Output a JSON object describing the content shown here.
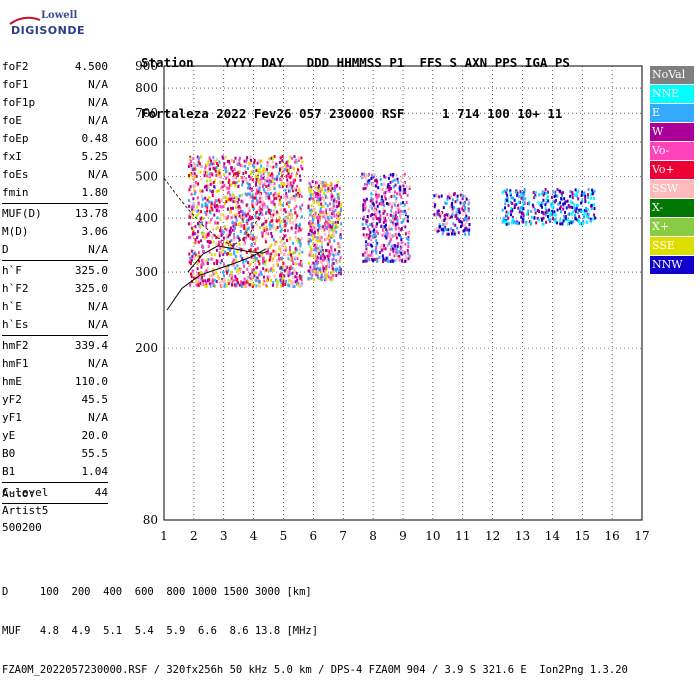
{
  "logo": {
    "word1": "Lowell",
    "word2": "DIGISONDE"
  },
  "header": {
    "line1": "Station    YYYY DAY   DDD HHMMSS P1  FFS S AXN PPS IGA PS",
    "line2": "Fortaleza 2022 Fev26 057 230000 RSF     1 714 100 10+ 11"
  },
  "params": [
    [
      {
        "k": "foF2",
        "v": "4.500"
      },
      {
        "k": "foF1",
        "v": "N/A"
      },
      {
        "k": "foF1p",
        "v": "N/A"
      },
      {
        "k": "foE",
        "v": "N/A"
      },
      {
        "k": "foEp",
        "v": "0.48"
      },
      {
        "k": "fxI",
        "v": "5.25"
      },
      {
        "k": "foEs",
        "v": "N/A"
      },
      {
        "k": "fmin",
        "v": "1.80"
      }
    ],
    [
      {
        "k": "MUF(D)",
        "v": "13.78"
      },
      {
        "k": "M(D)",
        "v": "3.06"
      },
      {
        "k": "D",
        "v": "N/A"
      }
    ],
    [
      {
        "k": "h`F",
        "v": "325.0"
      },
      {
        "k": "h`F2",
        "v": "325.0"
      },
      {
        "k": "h`E",
        "v": "N/A"
      },
      {
        "k": "h`Es",
        "v": "N/A"
      }
    ],
    [
      {
        "k": "hmF2",
        "v": "339.4"
      },
      {
        "k": "hmF1",
        "v": "N/A"
      },
      {
        "k": "hmE",
        "v": "110.0"
      },
      {
        "k": "yF2",
        "v": "45.5"
      },
      {
        "k": "yF1",
        "v": "N/A"
      },
      {
        "k": "yE",
        "v": "20.0"
      },
      {
        "k": "B0",
        "v": "55.5"
      },
      {
        "k": "B1",
        "v": "1.04"
      }
    ],
    [
      {
        "k": "C-level",
        "v": "44"
      }
    ]
  ],
  "auto": {
    "line1": "Auto:",
    "line2": "Artist5",
    "line3": "500200"
  },
  "legend": [
    {
      "label": "NoVal",
      "color": "#808080"
    },
    {
      "label": "NNE",
      "color": "#00ffff"
    },
    {
      "label": "E",
      "color": "#33aaff"
    },
    {
      "label": "W",
      "color": "#aa0099"
    },
    {
      "label": "Vo-",
      "color": "#ff44bb"
    },
    {
      "label": "Vo+",
      "color": "#ee0033"
    },
    {
      "label": "SSW",
      "color": "#ffbbbb"
    },
    {
      "label": "X-",
      "color": "#007700"
    },
    {
      "label": "X+",
      "color": "#88cc44"
    },
    {
      "label": "SSE",
      "color": "#dddd00"
    },
    {
      "label": "NNW",
      "color": "#1100cc"
    }
  ],
  "footer": {
    "line1": "D     100  200  400  600  800 1000 1500 3000 [km]",
    "line2": "MUF   4.8  4.9  5.1  5.4  5.9  6.6  8.6 13.8 [MHz]",
    "line3": "FZA0M_2022057230000.RSF / 320fx256h 50 kHz 5.0 km / DPS-4 FZA0M 904 / 3.9 S 321.6 E  Ion2Png 1.3.20"
  },
  "chart_data": {
    "type": "scatter",
    "xlim": [
      1,
      17
    ],
    "ylim": [
      80,
      900
    ],
    "y_scale": "log",
    "xticks": [
      1,
      2,
      3,
      4,
      5,
      6,
      7,
      8,
      9,
      10,
      11,
      12,
      13,
      14,
      15,
      16,
      17
    ],
    "yticks": [
      80,
      200,
      300,
      400,
      500,
      600,
      700,
      800,
      900
    ],
    "grid": true,
    "legend_position": "right",
    "clusters": [
      {
        "x": [
          1.8,
          5.6
        ],
        "y": [
          280,
          560
        ],
        "series": [
          "E",
          "W",
          "Vo-",
          "Vo+",
          "SSW",
          "SSE"
        ],
        "n": 1500
      },
      {
        "x": [
          5.8,
          6.9
        ],
        "y": [
          290,
          490
        ],
        "series": [
          "E",
          "SSW",
          "W",
          "SSE",
          "Vo-"
        ],
        "n": 500
      },
      {
        "x": [
          7.6,
          9.2
        ],
        "y": [
          320,
          510
        ],
        "series": [
          "SSW",
          "E",
          "W",
          "Vo-",
          "NNW"
        ],
        "n": 450
      },
      {
        "x": [
          10.0,
          11.2
        ],
        "y": [
          370,
          460
        ],
        "series": [
          "SSW",
          "E",
          "W",
          "NNW"
        ],
        "n": 150
      },
      {
        "x": [
          12.3,
          15.4
        ],
        "y": [
          390,
          470
        ],
        "series": [
          "NNW",
          "E",
          "W",
          "NNE"
        ],
        "n": 350
      }
    ],
    "trace": [
      [
        1.8,
        300
      ],
      [
        2.3,
        330
      ],
      [
        2.8,
        345
      ],
      [
        3.3,
        340
      ],
      [
        3.8,
        335
      ],
      [
        4.3,
        332
      ],
      [
        4.5,
        336
      ]
    ],
    "trace2": [
      [
        1.1,
        245
      ],
      [
        1.6,
        275
      ],
      [
        2.2,
        295
      ],
      [
        2.8,
        305
      ],
      [
        3.4,
        315
      ],
      [
        3.9,
        325
      ],
      [
        4.4,
        339
      ]
    ],
    "trace3": [
      [
        1.0,
        495
      ],
      [
        1.4,
        455
      ],
      [
        1.8,
        420
      ],
      [
        2.3,
        385
      ],
      [
        2.8,
        360
      ],
      [
        3.3,
        345
      ],
      [
        3.9,
        370
      ],
      [
        4.3,
        420
      ]
    ]
  }
}
